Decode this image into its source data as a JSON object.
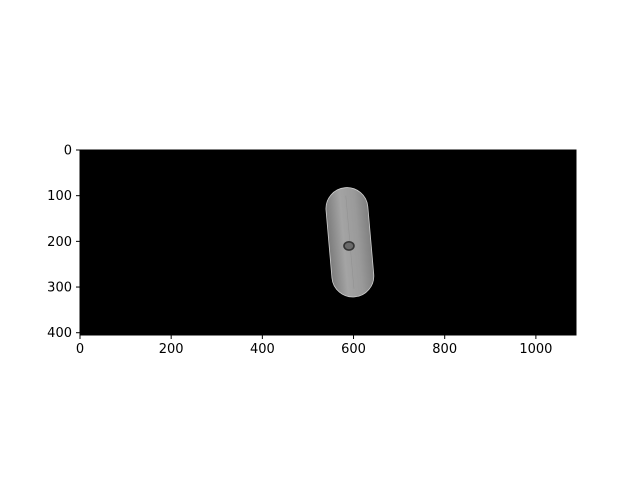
{
  "chart_data": {
    "type": "image",
    "title": "",
    "xlabel": "",
    "ylabel": "",
    "image_width": 1088,
    "image_height": 405,
    "xlim": [
      0,
      1088
    ],
    "ylim": [
      405,
      0
    ],
    "x_ticks": [
      0,
      200,
      400,
      600,
      800,
      1000
    ],
    "x_tick_labels": [
      "0",
      "200",
      "400",
      "600",
      "800",
      "1000"
    ],
    "y_ticks": [
      0,
      100,
      200,
      300,
      400
    ],
    "y_tick_labels": [
      "0",
      "100",
      "200",
      "300",
      "400"
    ],
    "background_color": "#000000",
    "object": {
      "description": "grey capsule-shaped specimen",
      "center_x": 592,
      "center_y": 202,
      "length": 240,
      "width": 92,
      "tilt_deg": -5,
      "color": "#9a9a9a",
      "marker": {
        "x": 590,
        "y": 210,
        "rx": 11,
        "ry": 9,
        "color": "#333333"
      }
    }
  }
}
